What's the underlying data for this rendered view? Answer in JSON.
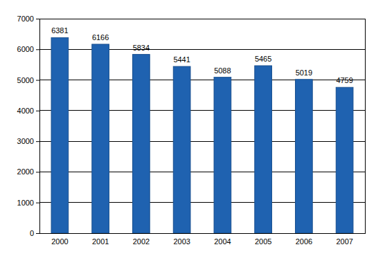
{
  "chart_data": {
    "type": "bar",
    "categories": [
      "2000",
      "2001",
      "2002",
      "2003",
      "2004",
      "2005",
      "2006",
      "2007"
    ],
    "values": [
      6381,
      6166,
      5834,
      5441,
      5088,
      5465,
      5019,
      4759
    ],
    "color": "#1f62b0",
    "ylim": [
      0,
      7000
    ],
    "yticks": [
      0,
      1000,
      2000,
      3000,
      4000,
      5000,
      6000,
      7000
    ],
    "grid": true,
    "data_labels": true
  }
}
